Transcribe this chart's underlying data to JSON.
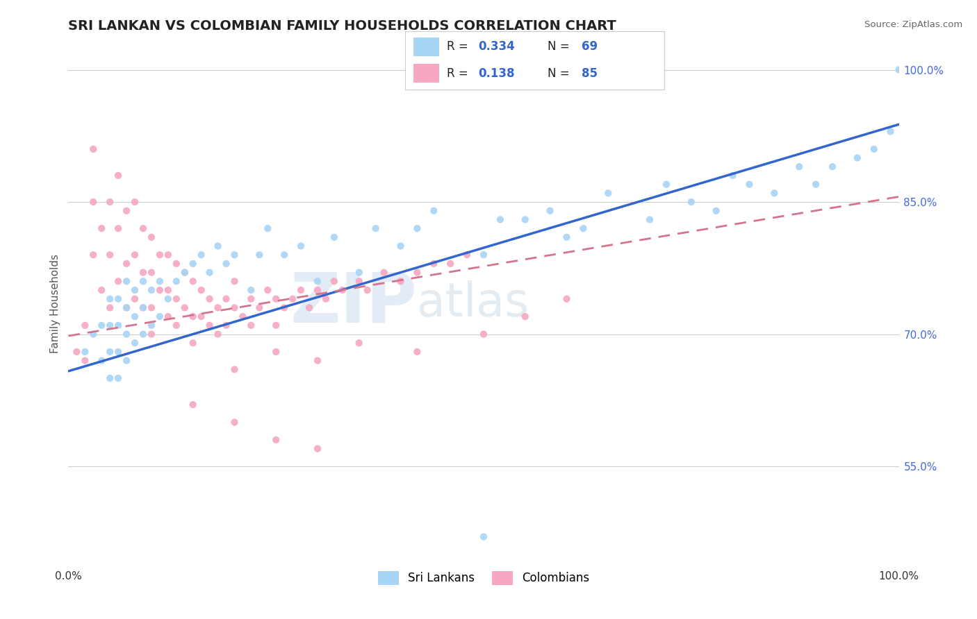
{
  "title": "SRI LANKAN VS COLOMBIAN FAMILY HOUSEHOLDS CORRELATION CHART",
  "source": "Source: ZipAtlas.com",
  "ylabel": "Family Households",
  "xlim": [
    0.0,
    1.0
  ],
  "ylim": [
    0.44,
    1.03
  ],
  "xtick_labels": [
    "0.0%",
    "100.0%"
  ],
  "ytick_labels": [
    "55.0%",
    "70.0%",
    "85.0%",
    "100.0%"
  ],
  "ytick_values": [
    0.55,
    0.7,
    0.85,
    1.0
  ],
  "sri_lankan_color": "#A8D4F5",
  "colombian_color": "#F5A8C0",
  "sri_lankan_line_color": "#3366CC",
  "colombian_line_color": "#D4748C",
  "watermark_zip": "ZIP",
  "watermark_atlas": "atlas",
  "sl_r": 0.334,
  "sl_n": 69,
  "co_r": 0.138,
  "co_n": 85,
  "sl_line_x0": 0.0,
  "sl_line_y0": 0.658,
  "sl_line_x1": 1.0,
  "sl_line_y1": 0.938,
  "co_line_x0": 0.0,
  "co_line_y0": 0.698,
  "co_line_x1": 1.0,
  "co_line_y1": 0.856,
  "sl_x": [
    0.02,
    0.03,
    0.04,
    0.04,
    0.05,
    0.05,
    0.05,
    0.05,
    0.06,
    0.06,
    0.06,
    0.06,
    0.07,
    0.07,
    0.07,
    0.07,
    0.08,
    0.08,
    0.08,
    0.09,
    0.09,
    0.09,
    0.1,
    0.1,
    0.11,
    0.11,
    0.12,
    0.13,
    0.14,
    0.15,
    0.16,
    0.17,
    0.18,
    0.19,
    0.2,
    0.22,
    0.23,
    0.24,
    0.26,
    0.28,
    0.3,
    0.32,
    0.35,
    0.37,
    0.4,
    0.42,
    0.44,
    0.5,
    0.52,
    0.55,
    0.58,
    0.6,
    0.62,
    0.65,
    0.7,
    0.72,
    0.75,
    0.78,
    0.8,
    0.82,
    0.85,
    0.88,
    0.9,
    0.92,
    0.95,
    0.97,
    0.99,
    1.0,
    0.5
  ],
  "sl_y": [
    0.68,
    0.7,
    0.67,
    0.71,
    0.65,
    0.68,
    0.71,
    0.74,
    0.65,
    0.68,
    0.71,
    0.74,
    0.67,
    0.7,
    0.73,
    0.76,
    0.69,
    0.72,
    0.75,
    0.7,
    0.73,
    0.76,
    0.71,
    0.75,
    0.72,
    0.76,
    0.74,
    0.76,
    0.77,
    0.78,
    0.79,
    0.77,
    0.8,
    0.78,
    0.79,
    0.75,
    0.79,
    0.82,
    0.79,
    0.8,
    0.76,
    0.81,
    0.77,
    0.82,
    0.8,
    0.82,
    0.84,
    0.79,
    0.83,
    0.83,
    0.84,
    0.81,
    0.82,
    0.86,
    0.83,
    0.87,
    0.85,
    0.84,
    0.88,
    0.87,
    0.86,
    0.89,
    0.87,
    0.89,
    0.9,
    0.91,
    0.93,
    1.0,
    0.47
  ],
  "co_x": [
    0.01,
    0.02,
    0.02,
    0.03,
    0.03,
    0.03,
    0.04,
    0.04,
    0.05,
    0.05,
    0.05,
    0.06,
    0.06,
    0.06,
    0.07,
    0.07,
    0.07,
    0.08,
    0.08,
    0.08,
    0.09,
    0.09,
    0.09,
    0.1,
    0.1,
    0.1,
    0.1,
    0.11,
    0.11,
    0.12,
    0.12,
    0.12,
    0.13,
    0.13,
    0.13,
    0.14,
    0.14,
    0.15,
    0.15,
    0.15,
    0.16,
    0.16,
    0.17,
    0.17,
    0.18,
    0.18,
    0.19,
    0.19,
    0.2,
    0.2,
    0.21,
    0.22,
    0.22,
    0.23,
    0.24,
    0.25,
    0.25,
    0.26,
    0.27,
    0.28,
    0.29,
    0.3,
    0.31,
    0.32,
    0.33,
    0.35,
    0.36,
    0.38,
    0.4,
    0.42,
    0.44,
    0.46,
    0.48,
    0.2,
    0.25,
    0.3,
    0.35,
    0.42,
    0.5,
    0.55,
    0.6,
    0.15,
    0.2,
    0.25,
    0.3
  ],
  "co_y": [
    0.68,
    0.71,
    0.67,
    0.91,
    0.85,
    0.79,
    0.82,
    0.75,
    0.85,
    0.79,
    0.73,
    0.88,
    0.82,
    0.76,
    0.84,
    0.78,
    0.73,
    0.85,
    0.79,
    0.74,
    0.82,
    0.77,
    0.73,
    0.81,
    0.77,
    0.73,
    0.7,
    0.79,
    0.75,
    0.79,
    0.75,
    0.72,
    0.78,
    0.74,
    0.71,
    0.77,
    0.73,
    0.76,
    0.72,
    0.69,
    0.75,
    0.72,
    0.74,
    0.71,
    0.73,
    0.7,
    0.74,
    0.71,
    0.76,
    0.73,
    0.72,
    0.74,
    0.71,
    0.73,
    0.75,
    0.74,
    0.71,
    0.73,
    0.74,
    0.75,
    0.73,
    0.75,
    0.74,
    0.76,
    0.75,
    0.76,
    0.75,
    0.77,
    0.76,
    0.77,
    0.78,
    0.78,
    0.79,
    0.66,
    0.68,
    0.67,
    0.69,
    0.68,
    0.7,
    0.72,
    0.74,
    0.62,
    0.6,
    0.58,
    0.57
  ]
}
